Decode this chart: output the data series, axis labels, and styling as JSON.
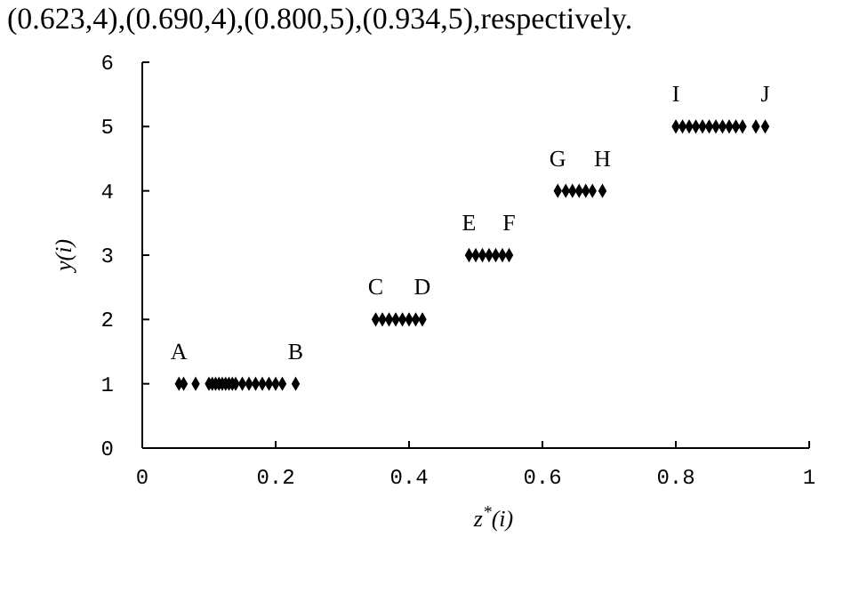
{
  "chart_data": {
    "type": "scatter",
    "x": [
      0.055,
      0.062,
      0.08,
      0.1,
      0.105,
      0.11,
      0.115,
      0.12,
      0.125,
      0.13,
      0.135,
      0.14,
      0.15,
      0.16,
      0.17,
      0.18,
      0.19,
      0.2,
      0.21,
      0.23,
      0.35,
      0.36,
      0.37,
      0.38,
      0.39,
      0.4,
      0.41,
      0.42,
      0.49,
      0.5,
      0.51,
      0.52,
      0.53,
      0.54,
      0.55,
      0.623,
      0.635,
      0.645,
      0.655,
      0.665,
      0.675,
      0.69,
      0.8,
      0.81,
      0.82,
      0.83,
      0.84,
      0.85,
      0.86,
      0.87,
      0.88,
      0.89,
      0.9,
      0.92,
      0.934
    ],
    "values": [
      1,
      1,
      1,
      1,
      1,
      1,
      1,
      1,
      1,
      1,
      1,
      1,
      1,
      1,
      1,
      1,
      1,
      1,
      1,
      1,
      2,
      2,
      2,
      2,
      2,
      2,
      2,
      2,
      3,
      3,
      3,
      3,
      3,
      3,
      3,
      4,
      4,
      4,
      4,
      4,
      4,
      4,
      5,
      5,
      5,
      5,
      5,
      5,
      5,
      5,
      5,
      5,
      5,
      5,
      5
    ],
    "color": "#000000",
    "marker": "diamond",
    "xlabel": "z$^{*}$(i)",
    "ylabel": "y(i)",
    "xlim": [
      0,
      1
    ],
    "ylim": [
      0,
      6
    ],
    "xticks": [
      0,
      0.2,
      0.4,
      0.6,
      0.8,
      1
    ],
    "yticks": [
      0,
      1,
      2,
      3,
      4,
      5,
      6
    ],
    "annotations": [
      "(0.623,4),(0.690,4),(0.800,5),(0.934,5),respectively.",
      {
        "text": "A",
        "x": 0.055,
        "y": 1
      },
      {
        "text": "B",
        "x": 0.23,
        "y": 1
      },
      {
        "text": "C",
        "x": 0.35,
        "y": 2
      },
      {
        "text": "D",
        "x": 0.42,
        "y": 2
      },
      {
        "text": "E",
        "x": 0.49,
        "y": 3
      },
      {
        "text": "F",
        "x": 0.55,
        "y": 3
      },
      {
        "text": "G",
        "x": 0.623,
        "y": 4
      },
      {
        "text": "H",
        "x": 0.69,
        "y": 4
      },
      {
        "text": "I",
        "x": 0.8,
        "y": 5
      },
      {
        "text": "J",
        "x": 0.934,
        "y": 5
      }
    ]
  }
}
